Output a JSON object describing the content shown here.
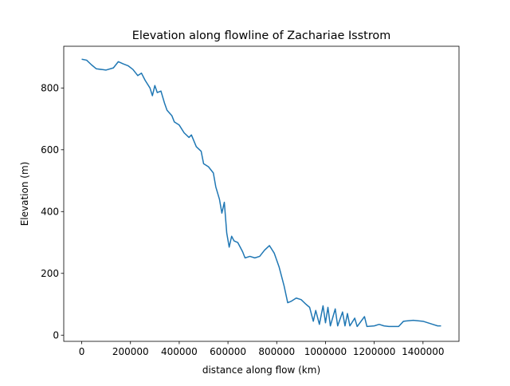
{
  "chart_data": {
    "type": "line",
    "title": "Elevation along flowline of Zachariae Isstrom",
    "x_label": "distance along flow (km)",
    "y_label": "Elevation (m)",
    "x": [
      0,
      20000,
      40000,
      60000,
      100000,
      130000,
      150000,
      170000,
      190000,
      210000,
      230000,
      245000,
      260000,
      280000,
      290000,
      300000,
      310000,
      325000,
      340000,
      350000,
      370000,
      380000,
      400000,
      420000,
      440000,
      450000,
      470000,
      490000,
      500000,
      520000,
      540000,
      550000,
      565000,
      575000,
      585000,
      595000,
      605000,
      615000,
      625000,
      640000,
      660000,
      670000,
      690000,
      710000,
      730000,
      750000,
      770000,
      790000,
      810000,
      830000,
      845000,
      860000,
      880000,
      900000,
      920000,
      935000,
      950000,
      960000,
      975000,
      990000,
      1000000,
      1010000,
      1020000,
      1040000,
      1050000,
      1070000,
      1080000,
      1090000,
      1100000,
      1120000,
      1130000,
      1160000,
      1170000,
      1200000,
      1220000,
      1240000,
      1260000,
      1300000,
      1320000,
      1360000,
      1400000,
      1440000,
      1460000,
      1474000
    ],
    "series": [
      {
        "name": "Elevation",
        "color": "#1f77b4",
        "values": [
          893,
          890,
          875,
          862,
          858,
          865,
          885,
          878,
          872,
          860,
          840,
          848,
          825,
          800,
          775,
          808,
          785,
          790,
          750,
          728,
          710,
          690,
          680,
          655,
          640,
          648,
          610,
          595,
          555,
          545,
          525,
          480,
          440,
          395,
          430,
          330,
          285,
          320,
          305,
          300,
          270,
          250,
          255,
          250,
          255,
          275,
          290,
          265,
          220,
          160,
          105,
          110,
          120,
          115,
          100,
          90,
          45,
          80,
          35,
          95,
          40,
          90,
          30,
          85,
          30,
          75,
          30,
          70,
          30,
          55,
          28,
          60,
          28,
          30,
          35,
          30,
          28,
          28,
          45,
          48,
          45,
          35,
          30,
          30
        ]
      }
    ],
    "xlim": [
      -73700,
      1547700
    ],
    "ylim": [
      -20,
      935
    ],
    "xticks": [
      0,
      200000,
      400000,
      600000,
      800000,
      1000000,
      1200000,
      1400000
    ],
    "yticks": [
      0,
      200,
      400,
      600,
      800
    ]
  }
}
